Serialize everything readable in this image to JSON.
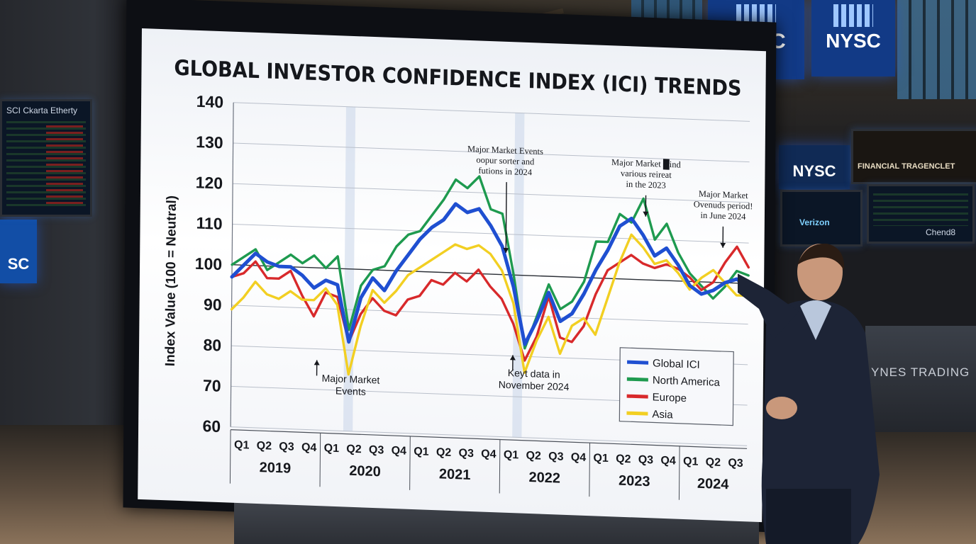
{
  "scene": {
    "signs": [
      "NYSC",
      "NYSC",
      "NYSC"
    ],
    "left_board_title": "SCI Ckarta Etherty",
    "right_board_title": "FINANCIAL TRAGENCLET",
    "monitor_brand": "Verizon",
    "monitor_code": "Chend8",
    "desk_text": "YNES TRADING",
    "colors": {
      "sign_blue": "#123a86",
      "screen_bg": "#ffffff"
    }
  },
  "chart_data": {
    "type": "line",
    "title": "GLOBAL INVESTOR CONFIDENCE INDEX (ICI) TRENDS",
    "ylabel": "Index Value (100 = Neutral)",
    "xlabel": "",
    "ylim": [
      60,
      140
    ],
    "yticks": [
      60,
      70,
      80,
      90,
      100,
      110,
      120,
      130,
      140
    ],
    "reference_line": 100,
    "grid": true,
    "legend_position": "bottom-right",
    "years": [
      {
        "label": "2019",
        "quarters": [
          "Q1",
          "Q2",
          "Q3",
          "Q4"
        ]
      },
      {
        "label": "2020",
        "quarters": [
          "Q1",
          "Q2",
          "Q3",
          "Q4"
        ]
      },
      {
        "label": "2021",
        "quarters": [
          "Q1",
          "Q2",
          "Q3",
          "Q4"
        ]
      },
      {
        "label": "2022",
        "quarters": [
          "Q1",
          "Q2",
          "Q3",
          "Q4"
        ]
      },
      {
        "label": "2023",
        "quarters": [
          "Q1",
          "Q2",
          "Q3",
          "Q4"
        ]
      },
      {
        "label": "2024",
        "quarters": [
          "Q1",
          "Q2",
          "Q3"
        ]
      }
    ],
    "x": [
      0,
      0.5,
      1,
      1.5,
      2,
      2.5,
      3,
      3.5,
      4,
      4.5,
      5,
      5.5,
      6,
      6.5,
      7,
      7.5,
      8,
      8.5,
      9,
      9.5,
      10,
      10.5,
      11,
      11.5,
      12,
      12.5,
      13,
      13.5,
      14,
      14.5,
      15,
      15.5,
      16,
      16.5,
      17,
      17.5,
      18,
      18.5,
      19,
      19.5,
      20,
      20.5,
      21,
      21.5,
      22
    ],
    "series": [
      {
        "name": "Global ICI",
        "color": "#1f4fd1",
        "values": [
          97,
          100,
          103,
          101,
          100,
          100,
          98,
          95,
          97,
          96,
          82,
          93,
          98,
          95,
          100,
          104,
          108,
          111,
          113,
          117,
          115,
          116,
          112,
          107,
          97,
          83,
          89,
          96,
          89,
          91,
          96,
          102,
          107,
          113,
          115,
          111,
          106,
          108,
          104,
          99,
          97,
          98,
          100,
          101,
          99
        ]
      },
      {
        "name": "North America",
        "color": "#1e9a4f",
        "values": [
          100,
          102,
          104,
          99,
          101,
          103,
          101,
          103,
          100,
          103,
          85,
          96,
          100,
          101,
          106,
          109,
          110,
          114,
          118,
          123,
          121,
          124,
          116,
          115,
          100,
          82,
          90,
          98,
          92,
          94,
          99,
          109,
          109,
          116,
          114,
          120,
          110,
          114,
          107,
          102,
          99,
          96,
          99,
          103,
          102
        ]
      },
      {
        "name": "Europe",
        "color": "#d8292b",
        "values": [
          97,
          98,
          101,
          97,
          97,
          99,
          93,
          88,
          94,
          93,
          82,
          89,
          93,
          90,
          89,
          93,
          94,
          98,
          97,
          100,
          98,
          101,
          97,
          94,
          88,
          79,
          85,
          95,
          85,
          84,
          88,
          96,
          102,
          104,
          106,
          104,
          103,
          104,
          103,
          101,
          98,
          100,
          105,
          109,
          104
        ]
      },
      {
        "name": "Asia",
        "color": "#f2cf22",
        "values": [
          89,
          92,
          96,
          93,
          92,
          94,
          92,
          92,
          95,
          91,
          74,
          86,
          95,
          92,
          95,
          99,
          101,
          103,
          105,
          107,
          106,
          107,
          105,
          101,
          93,
          76,
          84,
          90,
          81,
          88,
          90,
          86,
          95,
          104,
          111,
          108,
          104,
          105,
          102,
          98,
          101,
          103,
          100,
          97,
          97
        ]
      }
    ],
    "annotations": [
      {
        "text": "Major Market Events",
        "lines": [
          "Major Market",
          "Events"
        ],
        "x": 5.1,
        "y": 72,
        "arrow": true
      },
      {
        "text": "Major Market Events oopur sorter and futions in 2024",
        "lines": [
          "Major Market Events",
          "oopur sorter and",
          "futions in 2024"
        ],
        "x": 11.6,
        "y": 130,
        "arrow": true
      },
      {
        "text": "Keyt data in November 2024",
        "lines": [
          "Keyt data in",
          "November 2024"
        ],
        "x": 12.9,
        "y": 75,
        "arrow": true
      },
      {
        "text": "Major Market █ind various reireat in the 2023",
        "lines": [
          "Major Market █ind",
          "various reireat",
          "in the 2023"
        ],
        "x": 17.6,
        "y": 128,
        "arrow": true
      },
      {
        "text": "Major Market Ovenuds period! in June 2024",
        "lines": [
          "Major Market",
          "Ovenuds period!",
          "in June 2024"
        ],
        "x": 20.9,
        "y": 121,
        "arrow": true
      }
    ]
  }
}
